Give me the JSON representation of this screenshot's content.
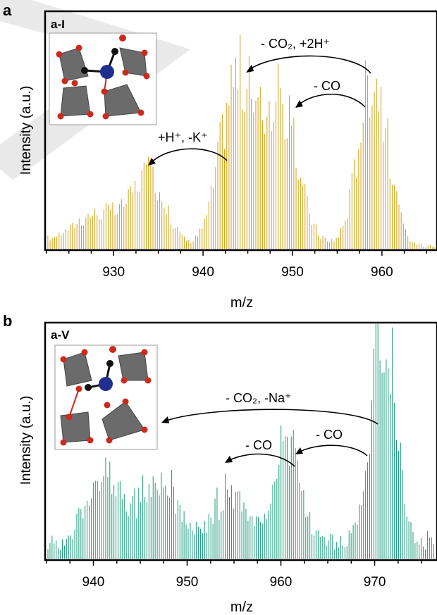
{
  "colors": {
    "panel_a_series": "#d4a017",
    "panel_b_series": "#1a9a78",
    "tungsten_polyhedra": "#6b6b6b",
    "oxygen": "#cc2a1a",
    "carbon": "#111111",
    "metal_center": "#1f2f8f",
    "watermark": "#e9e9e9"
  },
  "chart_data": [
    {
      "type": "bar",
      "panel_letter": "a",
      "panel_label": "a-I",
      "xlabel": "m/z",
      "ylabel": "Intensity (a.u.)",
      "xlim": [
        922.5,
        966
      ],
      "ylim": [
        0,
        1.0
      ],
      "xticks": [
        930,
        940,
        950,
        960
      ],
      "tick_labels": [
        "930",
        "940",
        "950",
        "960"
      ],
      "grid": false,
      "legend": "none",
      "inset": "molecular structure with metal center",
      "series": [
        {
          "color": "#d4a017",
          "envelopes": [
            {
              "center": 928.5,
              "height": 0.17,
              "width": 3.2
            },
            {
              "center": 934.0,
              "height": 0.34,
              "width": 1.8
            },
            {
              "center": 943.7,
              "height": 0.87,
              "width": 1.8
            },
            {
              "center": 948.5,
              "height": 0.75,
              "width": 2.0
            },
            {
              "center": 959.0,
              "height": 0.93,
              "width": 1.6
            }
          ],
          "baseline": 0.02
        }
      ],
      "annotations": [
        {
          "text": "- CO₂, +2H⁺",
          "from_x": 958.0,
          "to_x": 944.5
        },
        {
          "text": "- CO",
          "from_x": 957.5,
          "to_x": 950.0
        },
        {
          "text": "+H⁺, -K⁺",
          "from_x": 942.5,
          "to_x": 934.0
        }
      ]
    },
    {
      "type": "bar",
      "panel_letter": "b",
      "panel_label": "a-V",
      "xlabel": "m/z",
      "ylabel": "Intensity (a.u.)",
      "xlim": [
        935,
        976.5
      ],
      "ylim": [
        0,
        1.0
      ],
      "xticks": [
        940,
        950,
        960,
        970
      ],
      "tick_labels": [
        "940",
        "950",
        "960",
        "970"
      ],
      "grid": false,
      "legend": "none",
      "inset": "molecular structure with metal center",
      "series": [
        {
          "color": "#1a9a78",
          "envelopes": [
            {
              "center": 941.0,
              "height": 0.35,
              "width": 1.8
            },
            {
              "center": 947.0,
              "height": 0.35,
              "width": 2.0
            },
            {
              "center": 954.5,
              "height": 0.25,
              "width": 1.8
            },
            {
              "center": 960.7,
              "height": 0.52,
              "width": 1.5
            },
            {
              "center": 970.0,
              "height": 0.65,
              "width": 1.0
            },
            {
              "center": 971.5,
              "height": 0.93,
              "width": 1.0
            }
          ],
          "baseline": 0.09
        }
      ],
      "annotations": [
        {
          "text": "- CO₂, -Na⁺",
          "from_x": 970.0,
          "to_x": 947.0
        },
        {
          "text": "- CO",
          "from_x": 961.3,
          "to_x": 954.5
        },
        {
          "text": "- CO",
          "from_x": 969.0,
          "to_x": 962.0
        }
      ]
    }
  ]
}
